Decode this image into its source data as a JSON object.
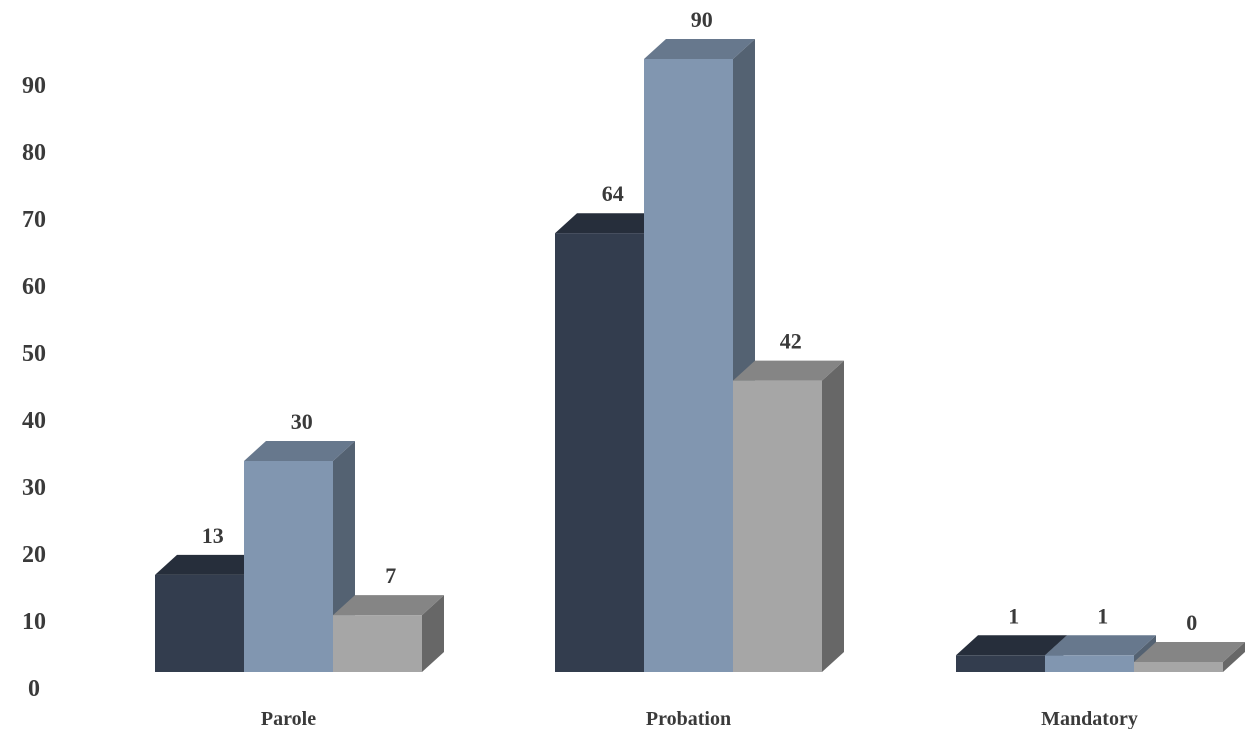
{
  "chart_data": {
    "type": "bar",
    "title": "",
    "xlabel": "",
    "ylabel": "",
    "categories": [
      "Parole",
      "Probation",
      "Mandatory"
    ],
    "series": [
      {
        "values": [
          13,
          64,
          1
        ],
        "color": "#333d4e"
      },
      {
        "values": [
          30,
          90,
          1
        ],
        "color": "#8196b0"
      },
      {
        "values": [
          7,
          42,
          0
        ],
        "color": "#a6a6a6"
      }
    ],
    "data_labels": [
      [
        "13",
        "64",
        "1"
      ],
      [
        "30",
        "90",
        "1"
      ],
      [
        "7",
        "42",
        "0"
      ]
    ],
    "yticks": [
      0,
      10,
      20,
      30,
      40,
      50,
      60,
      70,
      80,
      90
    ],
    "ylim": [
      0,
      90
    ],
    "grid": false,
    "legend": "none",
    "style": "3d-column"
  }
}
